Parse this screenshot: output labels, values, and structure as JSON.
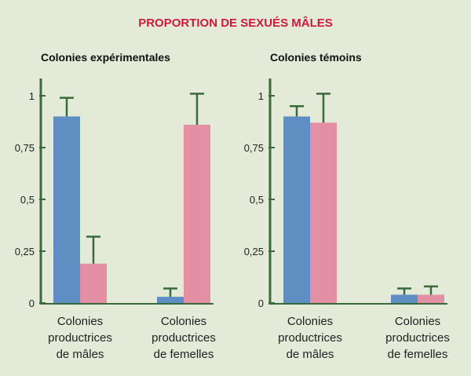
{
  "title": "PROPORTION DE SEXUÉS MÂLES",
  "colors": {
    "background": "#e3ead7",
    "title": "#d0193a",
    "axis": "#3a6a3a",
    "blue_series": "#5f8ec2",
    "pink_series": "#e390a4"
  },
  "chart_data": [
    {
      "type": "bar",
      "title": "Colonies expérimentales",
      "categories": [
        [
          "Colonies",
          "productrices",
          "de mâles"
        ],
        [
          "Colonies",
          "productrices",
          "de femelles"
        ]
      ],
      "series": [
        {
          "color": "#5f8ec2",
          "values": [
            0.9,
            0.03
          ],
          "error": [
            0.09,
            0.04
          ]
        },
        {
          "color": "#e390a4",
          "values": [
            0.19,
            0.86
          ],
          "error": [
            0.13,
            0.15
          ]
        }
      ],
      "ylim": [
        0,
        1
      ],
      "yticks": [
        0,
        0.25,
        0.5,
        0.75,
        1
      ],
      "ytick_labels": [
        "0",
        "0,25",
        "0,5",
        "0,75",
        "1"
      ],
      "grid": false
    },
    {
      "type": "bar",
      "title": "Colonies témoins",
      "categories": [
        [
          "Colonies",
          "productrices",
          "de mâles"
        ],
        [
          "Colonies",
          "productrices",
          "de femelles"
        ]
      ],
      "series": [
        {
          "color": "#5f8ec2",
          "values": [
            0.9,
            0.04
          ],
          "error": [
            0.05,
            0.03
          ]
        },
        {
          "color": "#e390a4",
          "values": [
            0.87,
            0.04
          ],
          "error": [
            0.14,
            0.04
          ]
        }
      ],
      "ylim": [
        0,
        1
      ],
      "yticks": [
        0,
        0.25,
        0.5,
        0.75,
        1
      ],
      "ytick_labels": [
        "0",
        "0,25",
        "0,5",
        "0,75",
        "1"
      ],
      "grid": false
    }
  ]
}
